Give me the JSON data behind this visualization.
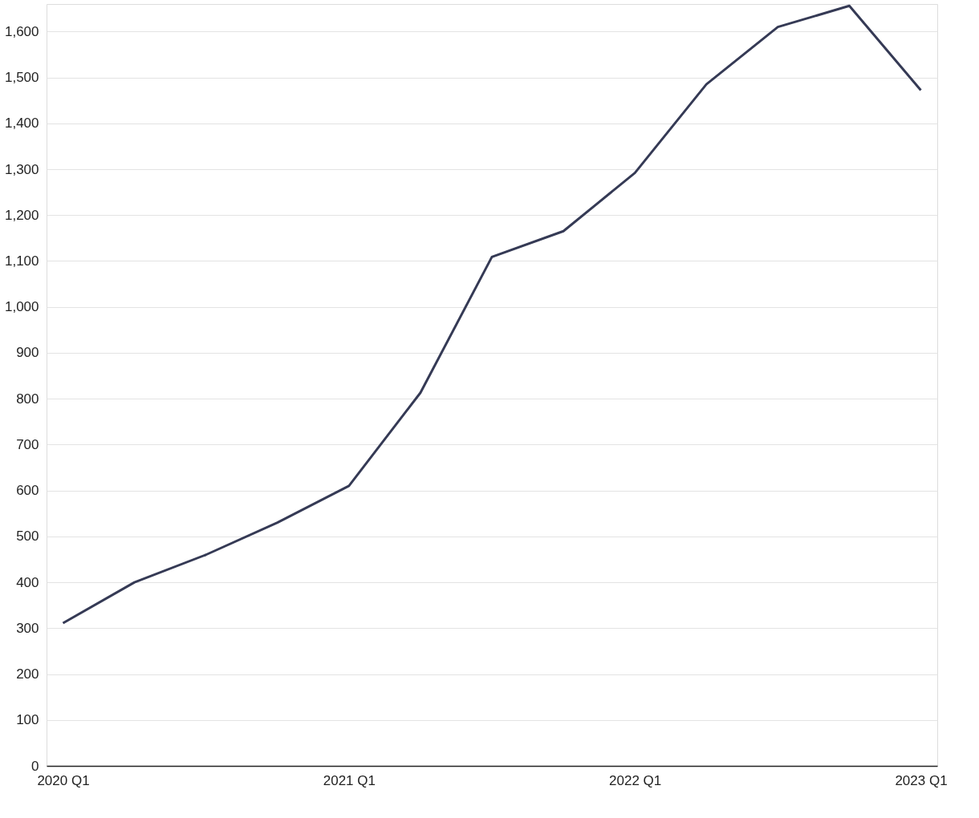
{
  "chart_data": {
    "type": "line",
    "categories": [
      "2020 Q1",
      null,
      null,
      null,
      "2021 Q1",
      null,
      null,
      null,
      "2022 Q1",
      null,
      null,
      null,
      "2023 Q1"
    ],
    "series": [
      {
        "color": "#353a55",
        "values": [
          311,
          400,
          460,
          530,
          610,
          813,
          1109,
          1165,
          1292,
          1485,
          1610,
          1656,
          1472
        ]
      }
    ],
    "ylim": [
      0,
      1660
    ],
    "yticks": [
      0,
      100,
      200,
      300,
      400,
      500,
      600,
      700,
      800,
      900,
      {
        "value": 1000,
        "label": "1,000"
      },
      {
        "value": 1100,
        "label": "1,100"
      },
      {
        "value": 1200,
        "label": "1,200"
      },
      {
        "value": 1300,
        "label": "1,300"
      },
      {
        "value": 1400,
        "label": "1,400"
      },
      {
        "value": 1500,
        "label": "1,500"
      },
      {
        "value": 1600,
        "label": "1,600"
      }
    ],
    "grid": "y",
    "line_style": "solid"
  }
}
